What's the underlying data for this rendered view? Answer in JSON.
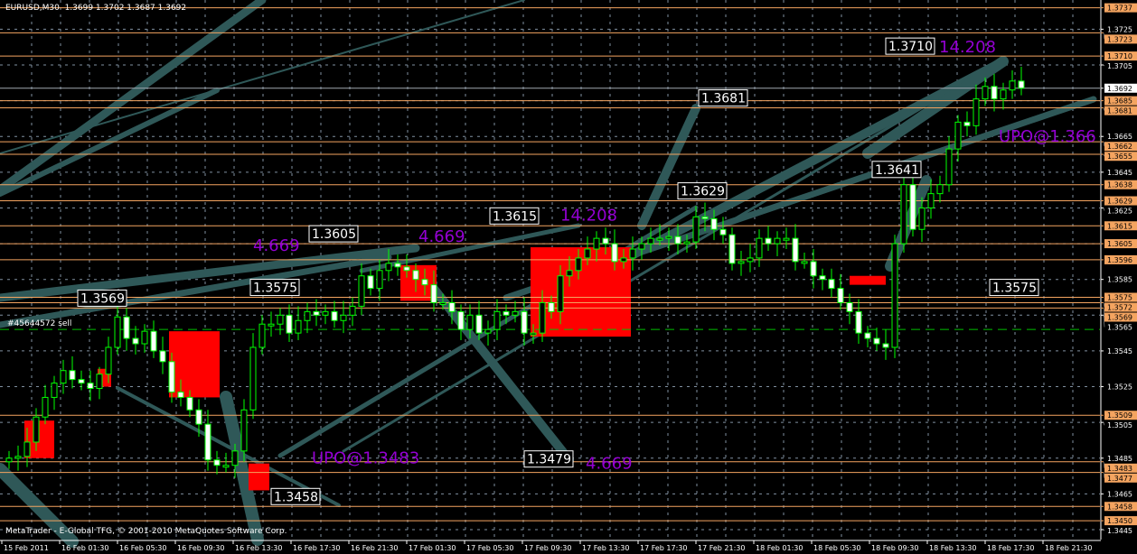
{
  "header": {
    "symbol": "EURUSD,M30",
    "ohlc": "1.3699 1.3702 1.3687 1.3692"
  },
  "footer": {
    "copyright": "MetaTrader - E-Global TFG, © 2001-2010 MetaQuotes Software Corp."
  },
  "colors": {
    "background": "#000000",
    "candle_outline": "#00ff00",
    "bull_body": "#000000",
    "bear_body": "#ffffff",
    "level_line": "#f4a460",
    "grid": "#8090a0",
    "box": "#ff0000",
    "arc": "#2f5858",
    "purple_text": "#9400d3",
    "order_line": "#00c000"
  },
  "chart_data": {
    "type": "candlestick",
    "instrument": "EURUSD",
    "timeframe": "M30",
    "grid": true,
    "ylim": [
      1.3437,
      1.374
    ],
    "y_ticks": [
      "1.3725",
      "1.3705",
      "1.3665",
      "1.3645",
      "1.3625",
      "1.3585",
      "1.3565",
      "1.3545",
      "1.3525",
      "1.3505",
      "1.3485",
      "1.3465",
      "1.3445"
    ],
    "x_ticks": [
      "15 Feb 2011",
      "16 Feb 01:30",
      "16 Feb 05:30",
      "16 Feb 09:30",
      "16 Feb 13:30",
      "16 Feb 17:30",
      "16 Feb 21:30",
      "17 Feb 01:30",
      "17 Feb 05:30",
      "17 Feb 09:30",
      "17 Feb 13:30",
      "17 Feb 17:30",
      "17 Feb 21:30",
      "18 Feb 01:30",
      "18 Feb 05:30",
      "18 Feb 09:30",
      "18 Feb 13:30",
      "18 Feb 17:30",
      "18 Feb 21:30"
    ],
    "closes": [
      1.3485,
      1.3486,
      1.3494,
      1.3508,
      1.3519,
      1.3527,
      1.3534,
      1.3529,
      1.3527,
      1.3524,
      1.3532,
      1.3547,
      1.3564,
      1.3552,
      1.3549,
      1.3556,
      1.3545,
      1.3539,
      1.3522,
      1.3519,
      1.3512,
      1.3504,
      1.3484,
      1.3481,
      1.3481,
      1.3489,
      1.3512,
      1.3547,
      1.356,
      1.356,
      1.3565,
      1.3555,
      1.3562,
      1.3567,
      1.3565,
      1.3567,
      1.3562,
      1.3565,
      1.357,
      1.3587,
      1.358,
      1.359,
      1.3594,
      1.3592,
      1.359,
      1.3585,
      1.3582,
      1.3572,
      1.3572,
      1.3567,
      1.3557,
      1.3565,
      1.3555,
      1.3557,
      1.3567,
      1.3565,
      1.3567,
      1.3555,
      1.3555,
      1.3572,
      1.3567,
      1.3587,
      1.359,
      1.3597,
      1.3602,
      1.3608,
      1.3605,
      1.3595,
      1.3597,
      1.3602,
      1.3605,
      1.3608,
      1.3608,
      1.3609,
      1.3605,
      1.3606,
      1.362,
      1.3619,
      1.3613,
      1.361,
      1.3594,
      1.3595,
      1.3597,
      1.3608,
      1.3605,
      1.3608,
      1.3608,
      1.3595,
      1.3595,
      1.3587,
      1.3585,
      1.358,
      1.3572,
      1.3567,
      1.3555,
      1.3552,
      1.3549,
      1.3547,
      1.3605,
      1.3638,
      1.3613,
      1.3625,
      1.3633,
      1.3638,
      1.3658,
      1.3673,
      1.3671,
      1.3686,
      1.3693,
      1.3686,
      1.3691,
      1.3696,
      1.3692
    ],
    "current_price": "1.3692",
    "levels": [
      "1.3737",
      "1.3723",
      "1.3710",
      "1.3685",
      "1.3681",
      "1.3662",
      "1.3655",
      "1.3638",
      "1.3629",
      "1.3615",
      "1.3605",
      "1.3596",
      "1.3575",
      "1.3572",
      "1.3569",
      "1.3509",
      "1.3483",
      "1.3477",
      "1.3458",
      "1.3450"
    ],
    "order": {
      "label": "#45644572 sell",
      "price": 1.3557
    },
    "boxes": [
      {
        "from_bar": 1.7,
        "to_bar": 5,
        "high": 1.3506,
        "low": 1.3485
      },
      {
        "from_bar": 9.8,
        "to_bar": 11.3,
        "high": 1.3535,
        "low": 1.3525
      },
      {
        "from_bar": 17.7,
        "to_bar": 23.3,
        "high": 1.3556,
        "low": 1.3519
      },
      {
        "from_bar": 26.5,
        "to_bar": 28.8,
        "high": 1.3482,
        "low": 1.3467
      },
      {
        "from_bar": 43.3,
        "to_bar": 47.3,
        "high": 1.3593,
        "low": 1.3573
      },
      {
        "from_bar": 57.7,
        "to_bar": 68.8,
        "high": 1.3603,
        "low": 1.3553
      },
      {
        "from_bar": 93,
        "to_bar": 97,
        "high": 1.3587,
        "low": 1.3582
      }
    ],
    "price_labels": [
      {
        "text": "1.3710",
        "bar": 97,
        "price": 1.3712
      },
      {
        "text": "1.3681",
        "bar": 76.3,
        "price": 1.3683
      },
      {
        "text": "1.3641",
        "bar": 95.5,
        "price": 1.3643
      },
      {
        "text": "1.3629",
        "bar": 74,
        "price": 1.3631
      },
      {
        "text": "1.3615",
        "bar": 53.2,
        "price": 1.3617
      },
      {
        "text": "1.3605",
        "bar": 33.2,
        "price": 1.3607
      },
      {
        "text": "1.3575",
        "bar": 26.7,
        "price": 1.3577
      },
      {
        "text": "1.3569",
        "bar": 7.6,
        "price": 1.3571
      },
      {
        "text": "1.3575",
        "bar": 108.5,
        "price": 1.3577
      },
      {
        "text": "1.3479",
        "bar": 57,
        "price": 1.3481
      },
      {
        "text": "1.3458",
        "bar": 29,
        "price": 1.346
      }
    ],
    "annotations": [
      {
        "text": "14.208",
        "bar": 102.5,
        "price": 1.3712
      },
      {
        "text": "UPO@1.366",
        "bar": 109.5,
        "price": 1.3662
      },
      {
        "text": "14.208",
        "bar": 61,
        "price": 1.3618
      },
      {
        "text": "4.669",
        "bar": 45.3,
        "price": 1.3606
      },
      {
        "text": "4.669",
        "bar": 27,
        "price": 1.3601
      },
      {
        "text": "UPO@1.3483",
        "bar": 33.5,
        "price": 1.3482
      },
      {
        "text": "4.669",
        "bar": 63.8,
        "price": 1.3479
      }
    ]
  }
}
